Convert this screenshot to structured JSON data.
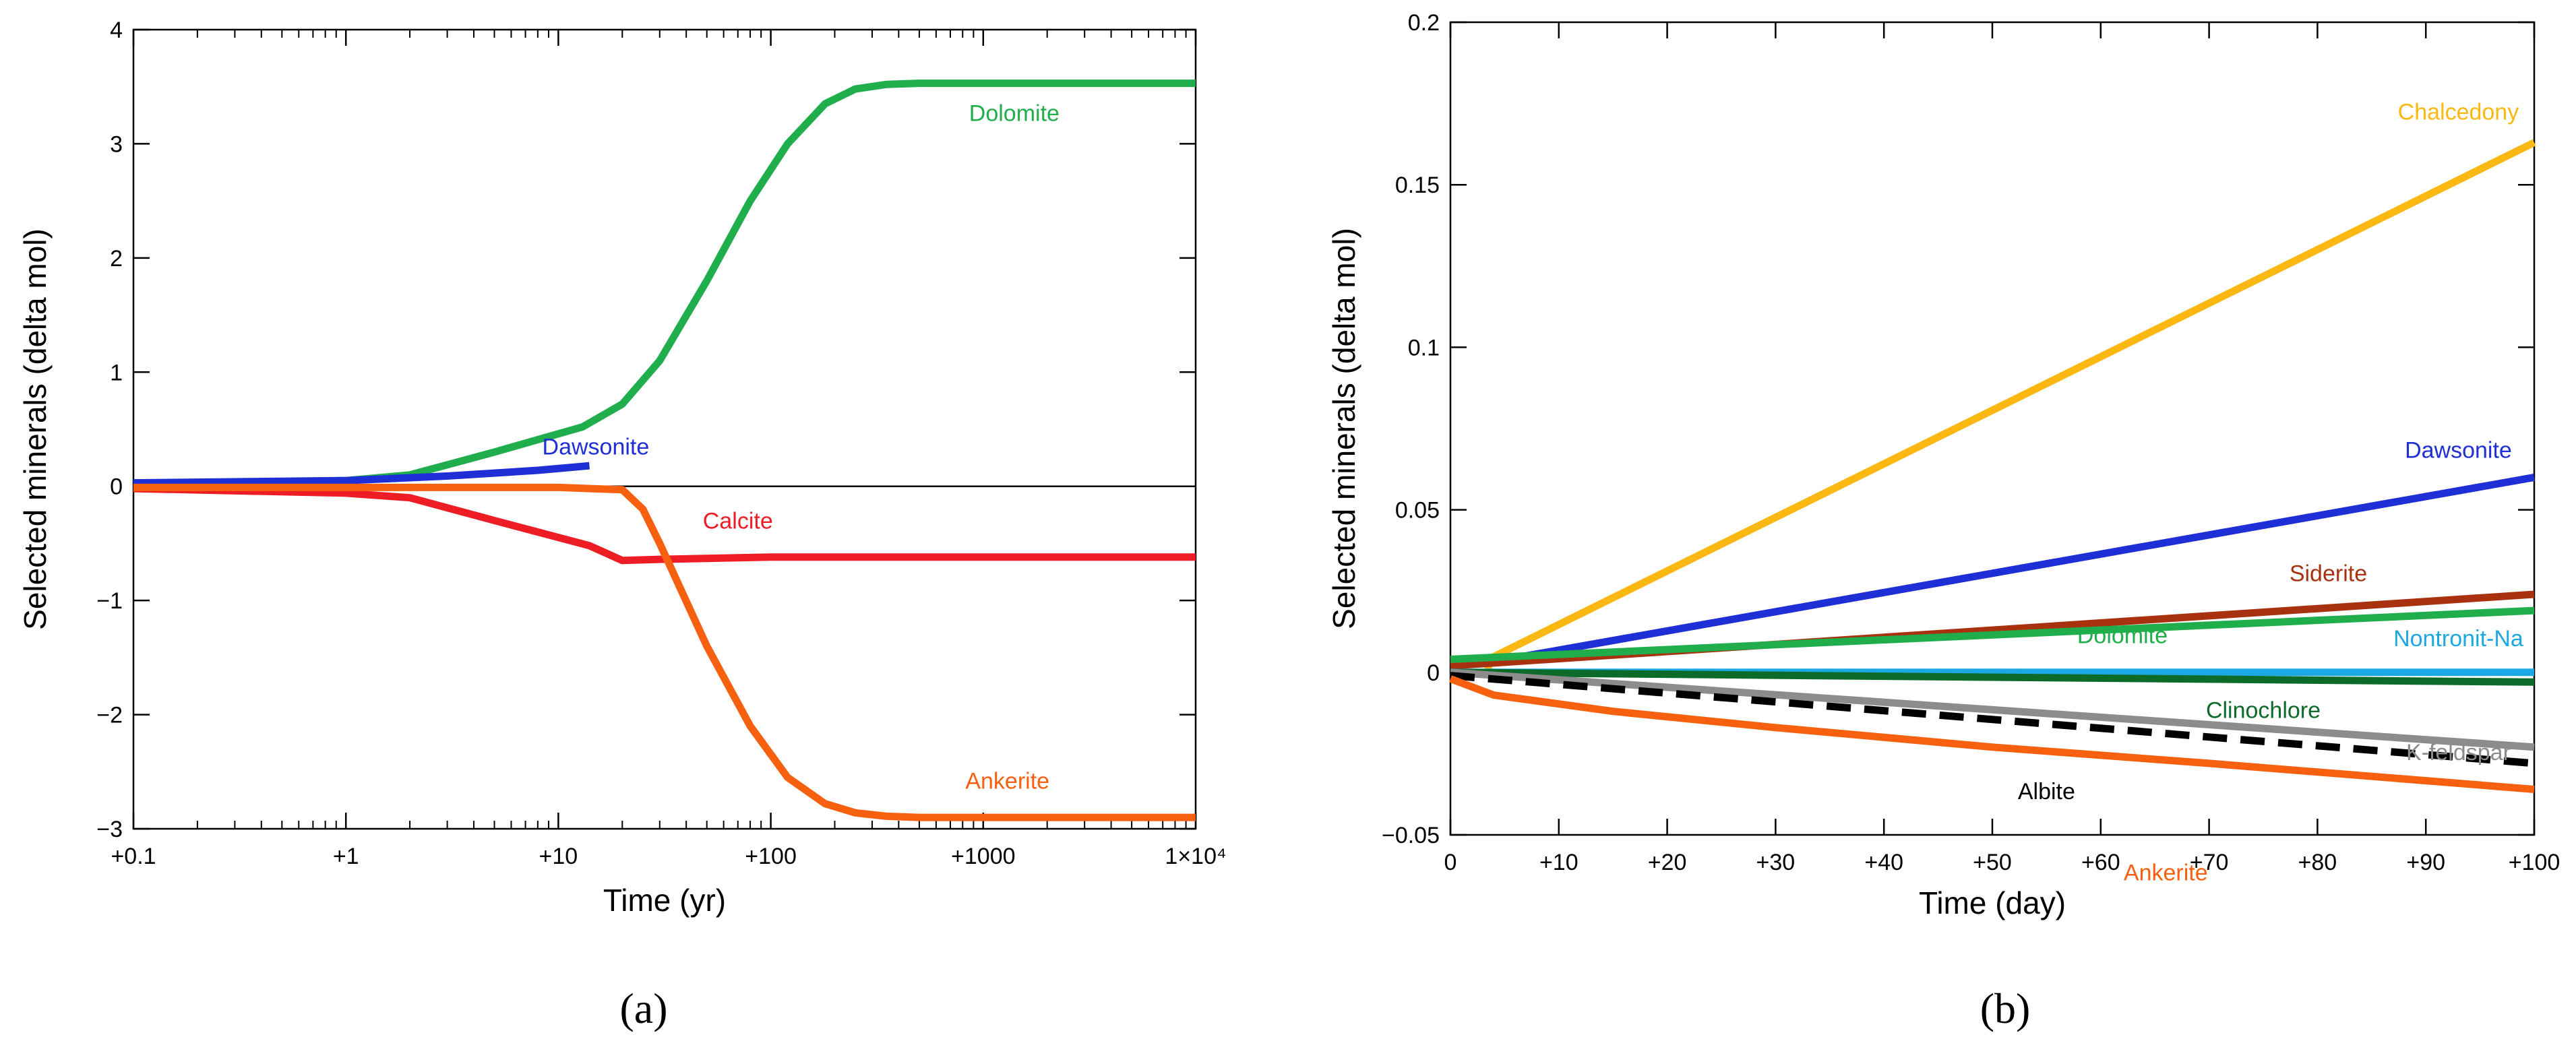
{
  "chart_data": [
    {
      "type": "line",
      "panel_caption": "(a)",
      "xlabel": "Time (yr)",
      "ylabel": "Selected minerals (delta mol)",
      "xscale": "log",
      "xlim": [
        0.1,
        10000
      ],
      "ylim": [
        -3,
        4
      ],
      "x_ticks": [
        0.1,
        1,
        10,
        100,
        1000,
        10000
      ],
      "x_tick_labels": [
        "+0.1",
        "+1",
        "+10",
        "+100",
        "+1000",
        "1×10⁴"
      ],
      "y_ticks": [
        -3,
        -2,
        -1,
        0,
        1,
        2,
        3,
        4
      ],
      "y_tick_labels": [
        "−3",
        "−2",
        "−1",
        "0",
        "1",
        "2",
        "3",
        "4"
      ],
      "zero_line": true,
      "series": [
        {
          "name": "Dolomite",
          "color": "#1fae4b",
          "x": [
            0.1,
            1,
            2,
            5,
            13,
            20,
            30,
            50,
            80,
            120,
            180,
            250,
            350,
            500,
            1000,
            10000
          ],
          "y": [
            0.02,
            0.05,
            0.1,
            0.3,
            0.52,
            0.72,
            1.1,
            1.8,
            2.5,
            3.0,
            3.35,
            3.48,
            3.52,
            3.53,
            3.53,
            3.53
          ]
        },
        {
          "name": "Dawsonite",
          "color": "#1f2fd6",
          "x": [
            0.1,
            1,
            3,
            8,
            14
          ],
          "y": [
            0.03,
            0.05,
            0.09,
            0.14,
            0.18
          ]
        },
        {
          "name": "Calcite",
          "color": "#ee1c24",
          "x": [
            0.1,
            1,
            2,
            5,
            14,
            20,
            30,
            100,
            1000,
            10000
          ],
          "y": [
            -0.02,
            -0.06,
            -0.1,
            -0.3,
            -0.52,
            -0.65,
            -0.64,
            -0.62,
            -0.62,
            -0.62
          ]
        },
        {
          "name": "Ankerite",
          "color": "#f7600f",
          "x": [
            0.1,
            1,
            10,
            20,
            25,
            30,
            50,
            80,
            120,
            180,
            250,
            350,
            500,
            1000,
            10000
          ],
          "y": [
            -0.01,
            -0.01,
            -0.01,
            -0.03,
            -0.2,
            -0.5,
            -1.4,
            -2.1,
            -2.55,
            -2.78,
            -2.86,
            -2.89,
            -2.9,
            -2.9,
            -2.9
          ]
        }
      ],
      "annotations": [
        {
          "text": "Dolomite",
          "series": "Dolomite",
          "x": 1400,
          "y": 3.2
        },
        {
          "text": "Dawsonite",
          "series": "Dawsonite",
          "x": 15,
          "y": 0.28
        },
        {
          "text": "Calcite",
          "series": "Calcite",
          "x": 70,
          "y": -0.37
        },
        {
          "text": "Ankerite",
          "series": "Ankerite",
          "x": 1300,
          "y": -2.65
        }
      ]
    },
    {
      "type": "line",
      "panel_caption": "(b)",
      "xlabel": "Time (day)",
      "ylabel": "Selected minerals (delta mol)",
      "xscale": "linear",
      "xlim": [
        0,
        100
      ],
      "ylim": [
        -0.05,
        0.2
      ],
      "x_ticks": [
        0,
        10,
        20,
        30,
        40,
        50,
        60,
        70,
        80,
        90,
        100
      ],
      "x_tick_labels": [
        "0",
        "+10",
        "+20",
        "+30",
        "+40",
        "+50",
        "+60",
        "+70",
        "+80",
        "+90",
        "+100"
      ],
      "y_ticks": [
        -0.05,
        0,
        0.05,
        0.1,
        0.15,
        0.2
      ],
      "y_tick_labels": [
        "−0.05",
        "0",
        "0.05",
        "0.1",
        "0.15",
        "0.2"
      ],
      "series": [
        {
          "name": "Chalcedony",
          "color": "#fbb812",
          "x": [
            3.5,
            3.5,
            100
          ],
          "y": [
            0.0,
            0.004,
            0.163
          ]
        },
        {
          "name": "Dawsonite",
          "color": "#1f2fd6",
          "x": [
            3.5,
            100
          ],
          "y": [
            0.003,
            0.06
          ]
        },
        {
          "name": "Siderite",
          "color": "#a83210",
          "x": [
            0,
            100
          ],
          "y": [
            0.002,
            0.024
          ]
        },
        {
          "name": "Dolomite",
          "color": "#1fae4b",
          "x": [
            0,
            100
          ],
          "y": [
            0.004,
            0.019
          ]
        },
        {
          "name": "Nontronit-Na",
          "color": "#1ca8e2",
          "x": [
            0,
            100
          ],
          "y": [
            0.0,
            0.0
          ]
        },
        {
          "name": "Clinochlore",
          "color": "#0d6b2a",
          "x": [
            0,
            100
          ],
          "y": [
            0.0,
            -0.003
          ]
        },
        {
          "name": "K-feldspar",
          "color": "#8c8c8c",
          "x": [
            0,
            100
          ],
          "y": [
            0.0,
            -0.023
          ]
        },
        {
          "name": "Albite",
          "color": "#000000",
          "dashed": true,
          "x": [
            0,
            100
          ],
          "y": [
            -0.001,
            -0.028
          ]
        },
        {
          "name": "Ankerite",
          "color": "#f7600f",
          "x": [
            0,
            4,
            15,
            30,
            50,
            70,
            100
          ],
          "y": [
            -0.002,
            -0.007,
            -0.012,
            -0.017,
            -0.023,
            -0.028,
            -0.036
          ]
        }
      ],
      "annotations": [
        {
          "text": "Chalcedony",
          "series": "Chalcedony",
          "x": 93,
          "y": 0.17
        },
        {
          "text": "Dawsonite",
          "series": "Dawsonite",
          "x": 93,
          "y": 0.066
        },
        {
          "text": "Siderite",
          "series": "Siderite",
          "x": 81,
          "y": 0.028
        },
        {
          "text": "Dolomite",
          "series": "Dolomite",
          "x": 62,
          "y": 0.009
        },
        {
          "text": "Nontronit-Na",
          "series": "Nontronit-Na",
          "x": 93,
          "y": 0.008
        },
        {
          "text": "Clinochlore",
          "series": "Clinochlore",
          "x": 75,
          "y": -0.014
        },
        {
          "text": "K-feldspar",
          "series": "K-feldspar",
          "x": 93,
          "y": -0.027
        },
        {
          "text": "Albite",
          "series": "Albite",
          "x": 55,
          "y": -0.039
        },
        {
          "text": "Ankerite",
          "series": "Ankerite",
          "x": 66,
          "y": -0.064
        }
      ]
    }
  ]
}
